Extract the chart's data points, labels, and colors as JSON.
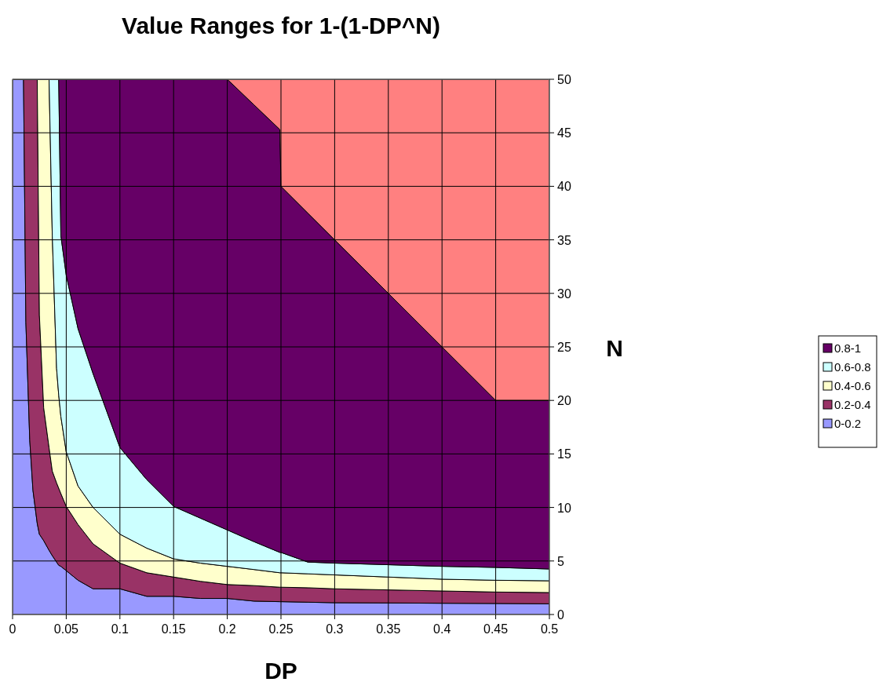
{
  "chart_data": {
    "type": "area",
    "stacked": true,
    "title": "Value Ranges for 1-(1-DP^N)",
    "xlabel": "DP",
    "ylabel": "N",
    "xlim": [
      0,
      0.5
    ],
    "xticks": [
      0,
      0.05,
      0.1,
      0.15,
      0.2,
      0.25,
      0.3,
      0.35,
      0.4,
      0.45,
      0.5
    ],
    "ylim": [
      0,
      50
    ],
    "yticks": [
      0,
      5,
      10,
      15,
      20,
      25,
      30,
      35,
      40,
      45,
      50
    ],
    "grid": true,
    "legend": "right",
    "x": [
      0,
      0.0102,
      0.0124,
      0.016,
      0.019,
      0.023,
      0.025,
      0.029,
      0.034,
      0.037,
      0.041,
      0.043,
      0.045,
      0.05,
      0.061,
      0.075,
      0.1,
      0.125,
      0.15,
      0.175,
      0.2,
      0.225,
      0.249,
      0.25,
      0.275,
      0.3,
      0.35,
      0.4,
      0.45,
      0.5
    ],
    "series": [
      {
        "name": "0-0.2",
        "color": "#9999ff",
        "values": [
          50,
          50,
          27.3,
          16.3,
          11.6,
          8.5,
          7.5,
          6.9,
          6.0,
          5.5,
          4.9,
          4.6,
          4.5,
          4.1,
          3.2,
          2.4,
          2.4,
          1.7,
          1.7,
          1.5,
          1.5,
          1.25,
          1.2,
          1.2,
          1.15,
          1.1,
          1.08,
          1.05,
          1.03,
          1.0
        ]
      },
      {
        "name": "0.2-0.4",
        "color": "#993366",
        "values": [
          0,
          0,
          22.7,
          33.7,
          38.4,
          41.5,
          20.5,
          12.4,
          9.6,
          7.9,
          7.4,
          7.2,
          6.8,
          6.0,
          5.2,
          4.2,
          2.4,
          2.2,
          1.8,
          1.6,
          1.3,
          1.45,
          1.35,
          1.35,
          1.35,
          1.3,
          1.22,
          1.15,
          1.07,
          1.05
        ]
      },
      {
        "name": "0.4-0.6",
        "color": "#ffffcc",
        "values": [
          0,
          0,
          0,
          0,
          0,
          0,
          22,
          30.7,
          34.4,
          22,
          10.7,
          8.7,
          7.2,
          5.1,
          3.6,
          3.4,
          2.7,
          2.3,
          1.7,
          1.7,
          1.7,
          1.5,
          1.35,
          1.35,
          1.3,
          1.3,
          1.2,
          1.1,
          1.1,
          1.1
        ]
      },
      {
        "name": "0.6-0.8",
        "color": "#ccffff",
        "values": [
          0,
          0,
          0,
          0,
          0,
          0,
          0,
          0,
          0,
          14.6,
          27,
          29.5,
          16.9,
          16.5,
          14.7,
          12.5,
          8.1,
          6.4,
          4.9,
          4.2,
          3.4,
          2.6,
          1.9,
          1.9,
          1.1,
          1.1,
          1.15,
          1.2,
          1.2,
          1.1
        ]
      },
      {
        "name": "0.8-1",
        "color": "#660066",
        "values": [
          0,
          0,
          0,
          0,
          0,
          0,
          0,
          0,
          0,
          0,
          0,
          0,
          14.6,
          18.3,
          23.3,
          27.5,
          34.4,
          37.4,
          39.9,
          41,
          42.1,
          40.8,
          39.5,
          34.2,
          32.6,
          30.2,
          25.35,
          20.5,
          15.6,
          15.75
        ]
      },
      {
        "color": "#ff8080",
        "values": [
          0,
          0,
          0,
          0,
          0,
          0,
          0,
          0,
          0,
          0,
          0,
          0,
          0,
          0,
          0,
          0,
          0,
          0,
          0,
          0,
          0,
          2.4,
          4.7,
          10,
          12.5,
          15,
          20,
          25,
          30,
          30
        ]
      }
    ]
  }
}
